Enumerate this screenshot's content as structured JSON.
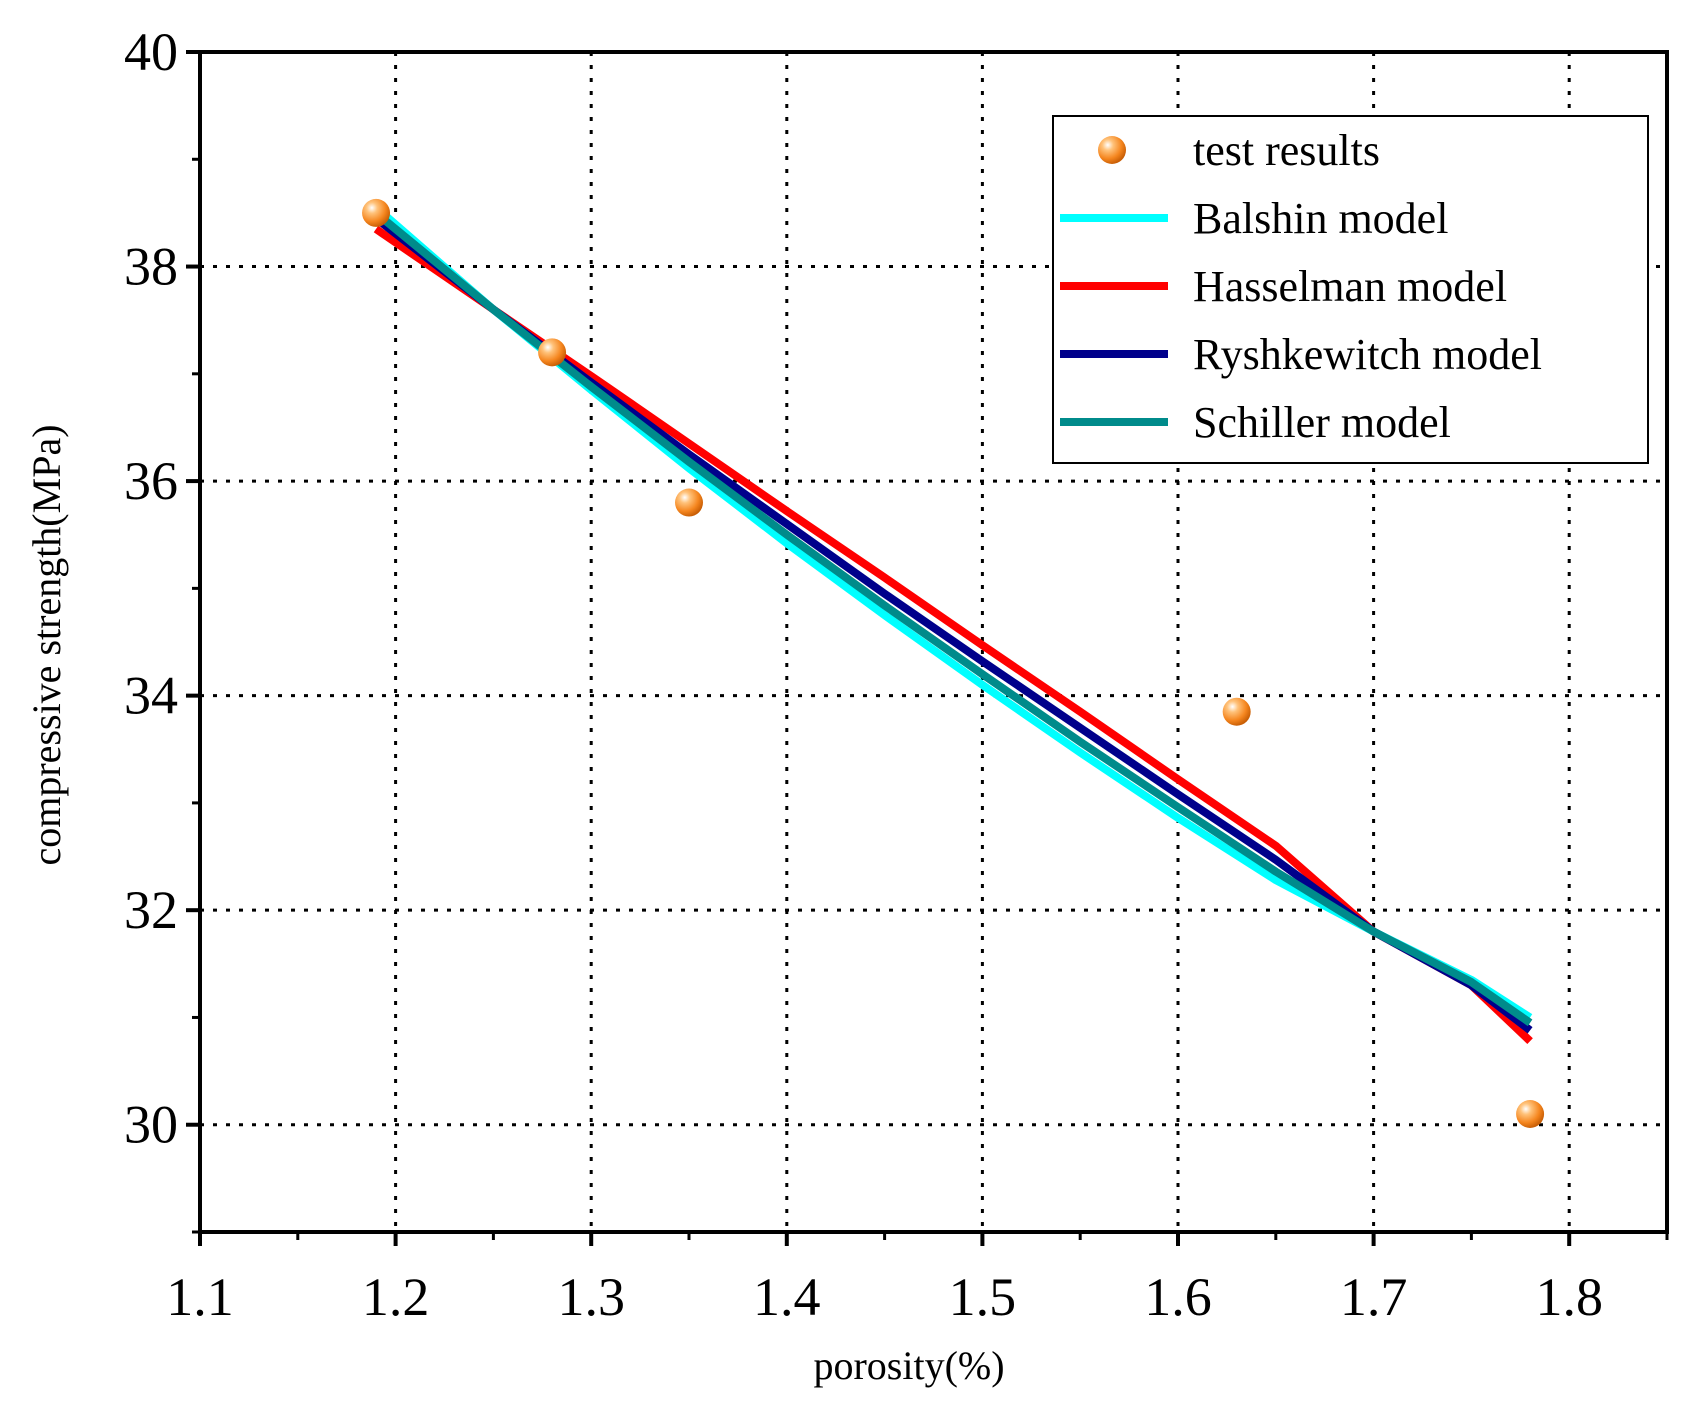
{
  "chart_data": {
    "type": "scatter",
    "title": "",
    "xlabel": "porosity(%)",
    "ylabel": "compressive strength(MPa)",
    "xlim": [
      1.1,
      1.85
    ],
    "ylim": [
      29.0,
      40.0
    ],
    "xticks": [
      1.1,
      1.2,
      1.3,
      1.4,
      1.5,
      1.6,
      1.7,
      1.8
    ],
    "xtick_labels": [
      "1.1",
      "1.2",
      "1.3",
      "1.4",
      "1.5",
      "1.6",
      "1.7",
      "1.8"
    ],
    "yticks": [
      30,
      32,
      34,
      36,
      38,
      40
    ],
    "ytick_labels": [
      "30",
      "32",
      "34",
      "36",
      "38",
      "40"
    ],
    "grid": "dotted",
    "legend_position": "top-right",
    "series": [
      {
        "name": "test results",
        "kind": "points",
        "color": "#f5861f",
        "x": [
          1.19,
          1.28,
          1.35,
          1.63,
          1.78
        ],
        "y": [
          38.5,
          37.2,
          35.8,
          33.85,
          30.1
        ]
      },
      {
        "name": "Balshin model",
        "kind": "line",
        "color": "#00ffff",
        "x": [
          1.19,
          1.25,
          1.3,
          1.35,
          1.4,
          1.45,
          1.5,
          1.55,
          1.6,
          1.65,
          1.7,
          1.75,
          1.78
        ],
        "y": [
          38.55,
          37.6,
          36.85,
          36.12,
          35.42,
          34.75,
          34.1,
          33.47,
          32.86,
          32.28,
          31.8,
          31.35,
          31.0
        ]
      },
      {
        "name": "Hasselman model",
        "kind": "line",
        "color": "#ff0000",
        "x": [
          1.19,
          1.25,
          1.3,
          1.35,
          1.4,
          1.45,
          1.5,
          1.55,
          1.6,
          1.65,
          1.7,
          1.75,
          1.78
        ],
        "y": [
          38.35,
          37.6,
          36.98,
          36.35,
          35.72,
          35.1,
          34.47,
          33.85,
          33.22,
          32.6,
          31.8,
          31.3,
          30.78
        ]
      },
      {
        "name": "Ryshkewitch model",
        "kind": "line",
        "color": "#00008b",
        "x": [
          1.19,
          1.25,
          1.3,
          1.35,
          1.4,
          1.45,
          1.5,
          1.55,
          1.6,
          1.65,
          1.7,
          1.75,
          1.78
        ],
        "y": [
          38.45,
          37.6,
          36.92,
          36.25,
          35.6,
          34.95,
          34.32,
          33.7,
          33.08,
          32.47,
          31.8,
          31.3,
          30.88
        ]
      },
      {
        "name": "Schiller model",
        "kind": "line",
        "color": "#008b8b",
        "x": [
          1.19,
          1.25,
          1.3,
          1.35,
          1.4,
          1.45,
          1.5,
          1.55,
          1.6,
          1.65,
          1.7,
          1.75,
          1.78
        ],
        "y": [
          38.5,
          37.6,
          36.88,
          36.18,
          35.5,
          34.84,
          34.2,
          33.57,
          32.96,
          32.36,
          31.8,
          31.33,
          30.95
        ]
      }
    ]
  }
}
